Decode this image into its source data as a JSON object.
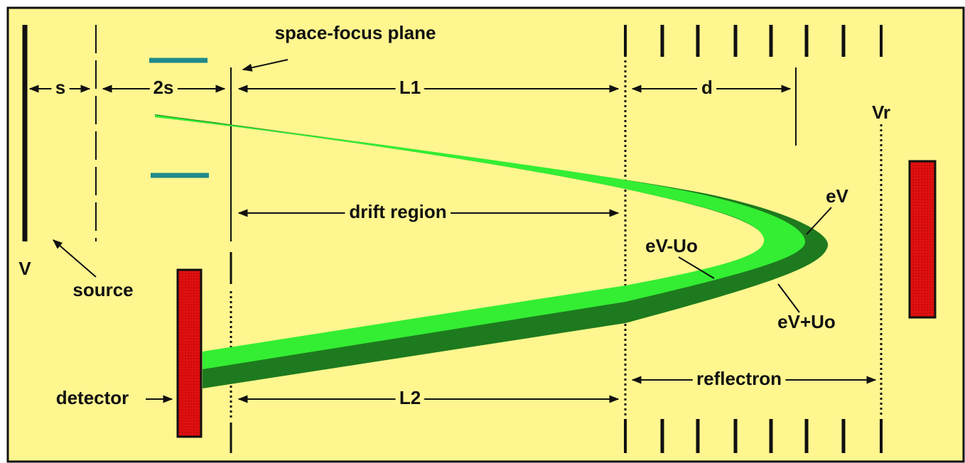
{
  "labels": {
    "space_focus": "space-focus plane",
    "s": "s",
    "two_s": "2s",
    "L1": "L1",
    "d": "d",
    "Vr": "Vr",
    "drift": "drift region",
    "eV": "eV",
    "eV_minus": "eV-Uo",
    "V": "V",
    "source": "source",
    "eV_plus": "eV+Uo",
    "detector": "detector",
    "reflectron": "reflectron",
    "L2": "L2"
  }
}
